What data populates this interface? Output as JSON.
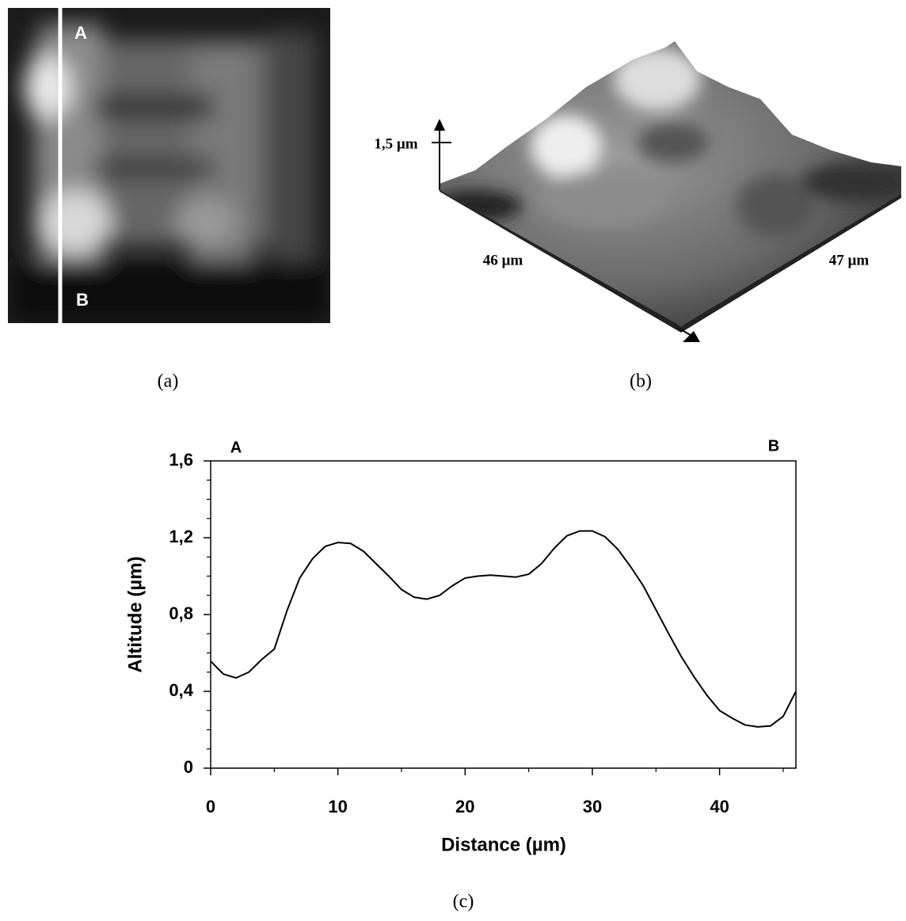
{
  "panels": {
    "a": {
      "caption": "(a)",
      "labels": [
        "A",
        "B"
      ]
    },
    "b": {
      "caption": "(b)",
      "height_label": "1,5 µm",
      "width_label": "46 µm",
      "depth_label": "47 µm"
    },
    "c": {
      "caption": "(c)"
    }
  },
  "chart_data": {
    "type": "line",
    "xlabel": "Distance (µm)",
    "ylabel": "Altitude (µm)",
    "annotations": [
      "A",
      "B"
    ],
    "x": [
      0,
      1,
      2,
      3,
      4,
      5,
      6,
      7,
      8,
      9,
      10,
      11,
      12,
      13,
      14,
      15,
      16,
      17,
      18,
      19,
      20,
      21,
      22,
      23,
      24,
      25,
      26,
      27,
      28,
      29,
      30,
      31,
      32,
      33,
      34,
      35,
      36,
      37,
      38,
      39,
      40,
      41,
      42,
      43,
      44,
      45,
      46
    ],
    "values": [
      0.557,
      0.49,
      0.47,
      0.5,
      0.565,
      0.62,
      0.82,
      0.99,
      1.09,
      1.155,
      1.175,
      1.17,
      1.13,
      1.065,
      1.0,
      0.93,
      0.89,
      0.88,
      0.9,
      0.95,
      0.99,
      1.0,
      1.005,
      1.0,
      0.995,
      1.01,
      1.065,
      1.145,
      1.21,
      1.235,
      1.235,
      1.205,
      1.14,
      1.05,
      0.95,
      0.825,
      0.7,
      0.58,
      0.475,
      0.38,
      0.3,
      0.26,
      0.225,
      0.215,
      0.22,
      0.27,
      0.4
    ],
    "color": "#000000",
    "xlim": [
      0,
      46
    ],
    "ylim": [
      0,
      1.6
    ],
    "xticks": [
      0,
      10,
      20,
      30,
      40
    ],
    "yticks": [
      0,
      {
        "value": 0.4,
        "label": "0,4"
      },
      {
        "value": 0.8,
        "label": "0,8"
      },
      {
        "value": 1.2,
        "label": "1,2"
      },
      {
        "value": 1.6,
        "label": "1,6"
      }
    ],
    "minor_ticks": true,
    "grid": false
  }
}
